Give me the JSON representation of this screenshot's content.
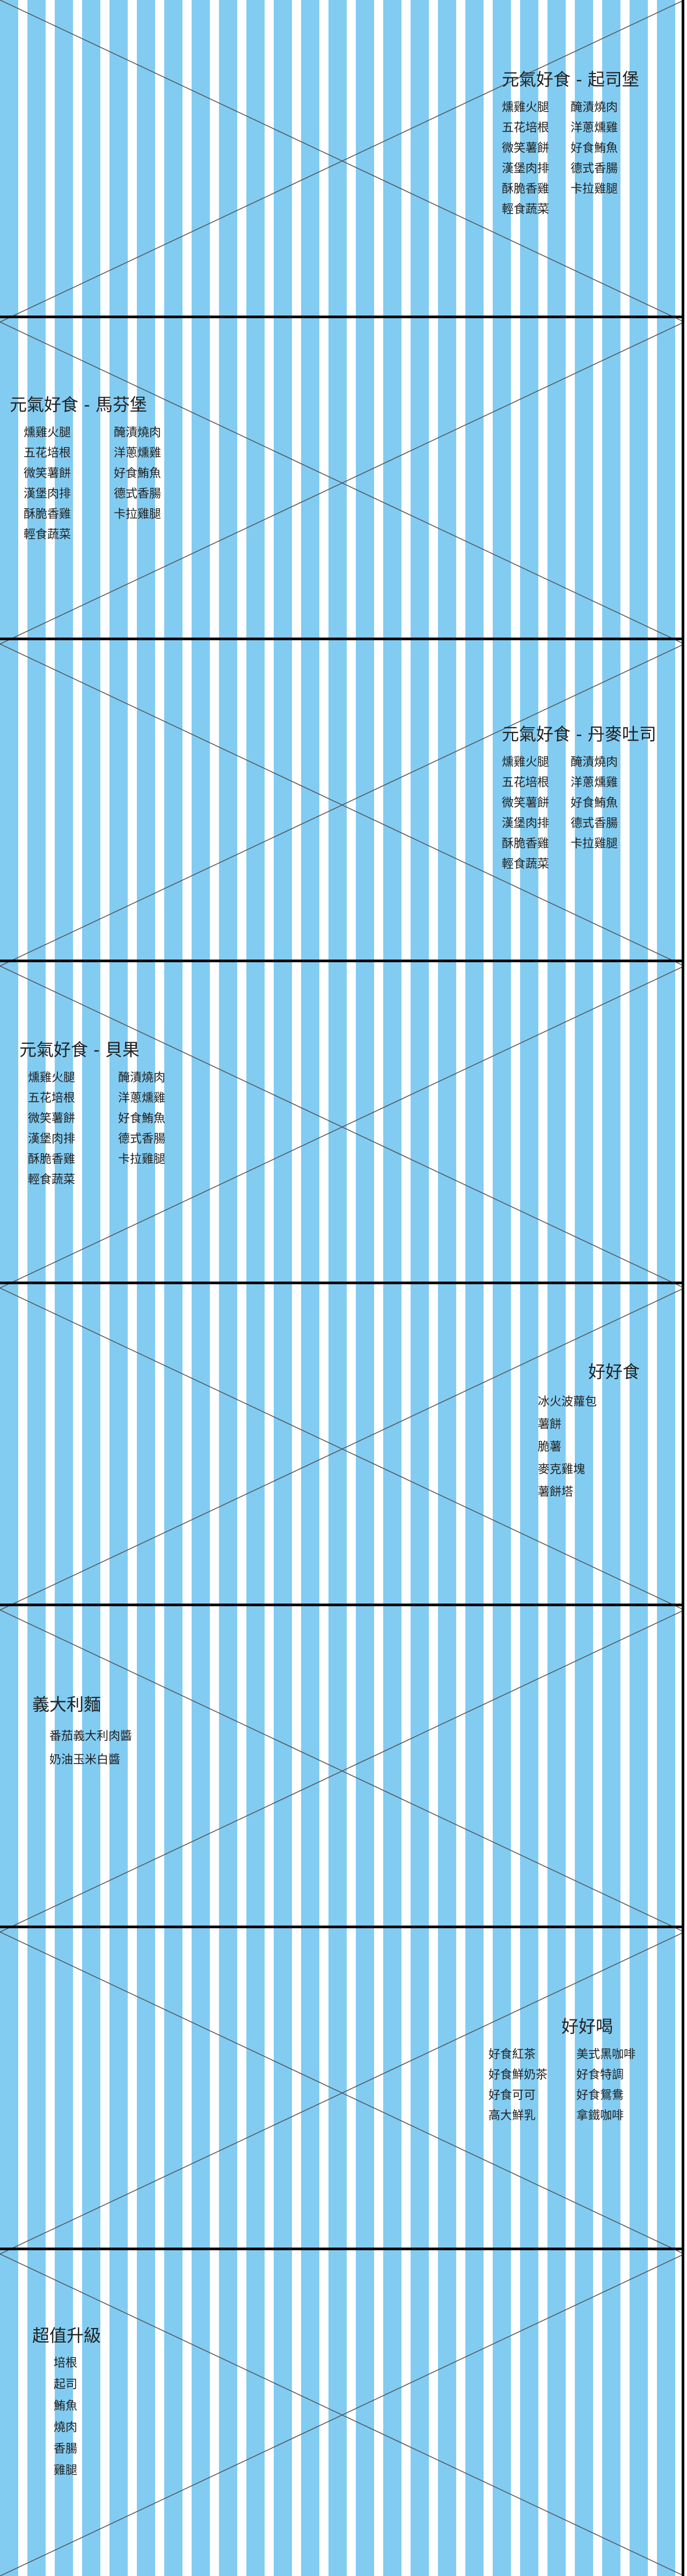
{
  "sections": [
    {
      "title": "元氣好食 - 起司堡",
      "left_items": [
        "燻雞火腿",
        "五花培根",
        "微笑薯餅",
        "漢堡肉排",
        "酥脆香雞",
        "輕食蔬菜"
      ],
      "right_items": [
        "醃漬燒肉",
        "洋蔥燻雞",
        "好食鮪魚",
        "德式香腸",
        "卡拉雞腿"
      ]
    },
    {
      "title": "元氣好食 - 馬芬堡",
      "left_items": [
        "燻雞火腿",
        "五花培根",
        "微笑薯餅",
        "漢堡肉排",
        "酥脆香雞",
        "輕食蔬菜"
      ],
      "right_items": [
        "醃漬燒肉",
        "洋蔥燻雞",
        "好食鮪魚",
        "德式香腸",
        "卡拉雞腿"
      ]
    },
    {
      "title": "元氣好食 - 丹麥吐司",
      "left_items": [
        "燻雞火腿",
        "五花培根",
        "微笑薯餅",
        "漢堡肉排",
        "酥脆香雞",
        "輕食蔬菜"
      ],
      "right_items": [
        "醃漬燒肉",
        "洋蔥燻雞",
        "好食鮪魚",
        "德式香腸",
        "卡拉雞腿"
      ]
    },
    {
      "title": "元氣好食 - 貝果",
      "left_items": [
        "燻雞火腿",
        "五花培根",
        "微笑薯餅",
        "漢堡肉排",
        "酥脆香雞",
        "輕食蔬菜"
      ],
      "right_items": [
        "醃漬燒肉",
        "洋蔥燻雞",
        "好食鮪魚",
        "德式香腸",
        "卡拉雞腿"
      ]
    },
    {
      "title": "好好食",
      "left_items": [
        "冰火波蘿包",
        "薯餅",
        "脆薯",
        "麥克雞塊",
        "薯餅塔"
      ],
      "right_items": []
    },
    {
      "title": "義大利麵",
      "left_items": [
        "番茄義大利肉醬",
        "奶油玉米白醬"
      ],
      "right_items": []
    },
    {
      "title": "好好喝",
      "left_items": [
        "好食紅茶",
        "好食鮮奶茶",
        "好食可可",
        "高大鮮乳"
      ],
      "right_items": [
        "美式黑咖啡",
        "好食特調",
        "好食鴛鴦",
        "拿鐵咖啡"
      ]
    },
    {
      "title": "超值升級",
      "left_items": [
        "培根",
        "起司",
        "鮪魚",
        "燒肉",
        "香腸",
        "雞腿"
      ],
      "right_items": []
    }
  ],
  "colors": {
    "stripe": "#82ccf2",
    "background": "#ffffff",
    "divider": "#000000"
  }
}
